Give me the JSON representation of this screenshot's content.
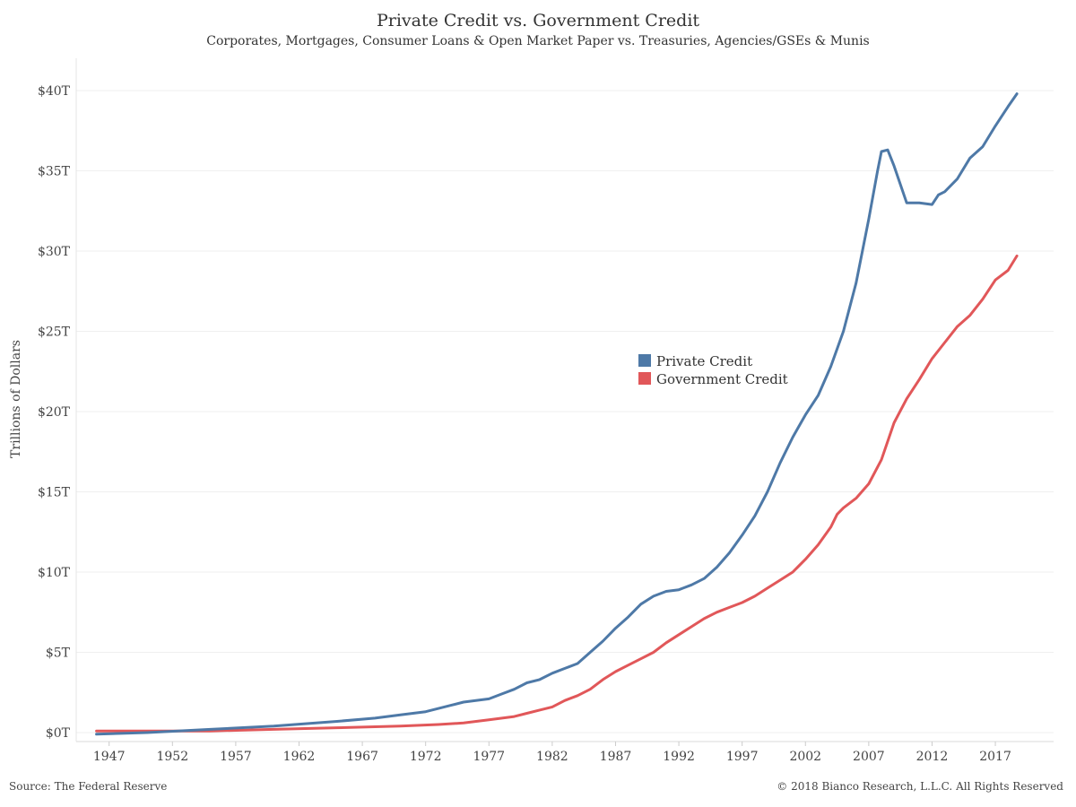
{
  "chart_data": {
    "type": "line",
    "title": "Private Credit vs. Government Credit",
    "subtitle": "Corporates, Mortgages, Consumer Loans & Open Market Paper vs. Treasuries, Agencies/GSEs & Munis",
    "ylabel": "Trillions of Dollars",
    "xlabel": "",
    "ylim": [
      0,
      40
    ],
    "xlim": [
      1944.4,
      2021.6
    ],
    "y_ticks": [
      0,
      5,
      10,
      15,
      20,
      25,
      30,
      35,
      40
    ],
    "y_tick_labels": [
      "$0T",
      "$5T",
      "$10T",
      "$15T",
      "$20T",
      "$25T",
      "$30T",
      "$35T",
      "$40T"
    ],
    "x_ticks": [
      1947,
      1952,
      1957,
      1962,
      1967,
      1972,
      1977,
      1982,
      1987,
      1992,
      1997,
      2002,
      2007,
      2012,
      2017
    ],
    "x_tick_labels": [
      "1947",
      "1952",
      "1957",
      "1962",
      "1967",
      "1972",
      "1977",
      "1982",
      "1987",
      "1992",
      "1997",
      "2002",
      "2007",
      "2012",
      "2017"
    ],
    "grid": {
      "y": true,
      "x": false
    },
    "legend_position": "center-right",
    "series": [
      {
        "name": "Private Credit",
        "color": "#4e79a7",
        "points": [
          [
            1946.0,
            -0.1
          ],
          [
            1950.0,
            0.0
          ],
          [
            1955.0,
            0.2
          ],
          [
            1960.0,
            0.4
          ],
          [
            1965.0,
            0.7
          ],
          [
            1968.0,
            0.9
          ],
          [
            1970.0,
            1.1
          ],
          [
            1972.0,
            1.3
          ],
          [
            1974.0,
            1.7
          ],
          [
            1975.0,
            1.9
          ],
          [
            1977.0,
            2.1
          ],
          [
            1978.0,
            2.4
          ],
          [
            1979.0,
            2.7
          ],
          [
            1980.0,
            3.1
          ],
          [
            1981.0,
            3.3
          ],
          [
            1982.0,
            3.7
          ],
          [
            1983.0,
            4.0
          ],
          [
            1984.0,
            4.3
          ],
          [
            1985.0,
            5.0
          ],
          [
            1986.0,
            5.7
          ],
          [
            1987.0,
            6.5
          ],
          [
            1988.0,
            7.2
          ],
          [
            1989.0,
            8.0
          ],
          [
            1990.0,
            8.5
          ],
          [
            1991.0,
            8.8
          ],
          [
            1992.0,
            8.9
          ],
          [
            1993.0,
            9.2
          ],
          [
            1994.0,
            9.6
          ],
          [
            1995.0,
            10.3
          ],
          [
            1996.0,
            11.2
          ],
          [
            1997.0,
            12.3
          ],
          [
            1998.0,
            13.5
          ],
          [
            1999.0,
            15.0
          ],
          [
            2000.0,
            16.8
          ],
          [
            2001.0,
            18.4
          ],
          [
            2002.0,
            19.8
          ],
          [
            2003.0,
            21.0
          ],
          [
            2004.0,
            22.8
          ],
          [
            2005.0,
            25.0
          ],
          [
            2006.0,
            28.0
          ],
          [
            2007.0,
            32.0
          ],
          [
            2007.7,
            35.0
          ],
          [
            2008.0,
            36.2
          ],
          [
            2008.5,
            36.3
          ],
          [
            2009.0,
            35.3
          ],
          [
            2010.0,
            33.0
          ],
          [
            2011.0,
            33.0
          ],
          [
            2012.0,
            32.9
          ],
          [
            2012.5,
            33.5
          ],
          [
            2013.0,
            33.7
          ],
          [
            2014.0,
            34.5
          ],
          [
            2015.0,
            35.8
          ],
          [
            2016.0,
            36.5
          ],
          [
            2017.0,
            37.8
          ],
          [
            2018.0,
            39.0
          ],
          [
            2018.7,
            39.8
          ]
        ]
      },
      {
        "name": "Government Credit",
        "color": "#e15759",
        "points": [
          [
            1946.0,
            0.1
          ],
          [
            1950.0,
            0.1
          ],
          [
            1955.0,
            0.1
          ],
          [
            1960.0,
            0.2
          ],
          [
            1965.0,
            0.3
          ],
          [
            1970.0,
            0.4
          ],
          [
            1973.0,
            0.5
          ],
          [
            1975.0,
            0.6
          ],
          [
            1977.0,
            0.8
          ],
          [
            1979.0,
            1.0
          ],
          [
            1980.0,
            1.2
          ],
          [
            1981.0,
            1.4
          ],
          [
            1982.0,
            1.6
          ],
          [
            1983.0,
            2.0
          ],
          [
            1984.0,
            2.3
          ],
          [
            1985.0,
            2.7
          ],
          [
            1986.0,
            3.3
          ],
          [
            1987.0,
            3.8
          ],
          [
            1988.0,
            4.2
          ],
          [
            1989.0,
            4.6
          ],
          [
            1990.0,
            5.0
          ],
          [
            1991.0,
            5.6
          ],
          [
            1992.0,
            6.1
          ],
          [
            1993.0,
            6.6
          ],
          [
            1994.0,
            7.1
          ],
          [
            1995.0,
            7.5
          ],
          [
            1996.0,
            7.8
          ],
          [
            1997.0,
            8.1
          ],
          [
            1998.0,
            8.5
          ],
          [
            1999.0,
            9.0
          ],
          [
            2000.0,
            9.5
          ],
          [
            2001.0,
            10.0
          ],
          [
            2002.0,
            10.8
          ],
          [
            2003.0,
            11.7
          ],
          [
            2004.0,
            12.8
          ],
          [
            2004.5,
            13.6
          ],
          [
            2005.0,
            14.0
          ],
          [
            2006.0,
            14.6
          ],
          [
            2007.0,
            15.5
          ],
          [
            2008.0,
            17.0
          ],
          [
            2009.0,
            19.3
          ],
          [
            2010.0,
            20.8
          ],
          [
            2011.0,
            22.0
          ],
          [
            2012.0,
            23.3
          ],
          [
            2013.0,
            24.3
          ],
          [
            2014.0,
            25.3
          ],
          [
            2015.0,
            26.0
          ],
          [
            2016.0,
            27.0
          ],
          [
            2017.0,
            28.2
          ],
          [
            2018.0,
            28.8
          ],
          [
            2018.7,
            29.7
          ]
        ]
      }
    ],
    "footnote_left": "Source: The Federal Reserve",
    "footnote_right": "© 2018 Bianco Research, L.L.C. All Rights Reserved"
  }
}
